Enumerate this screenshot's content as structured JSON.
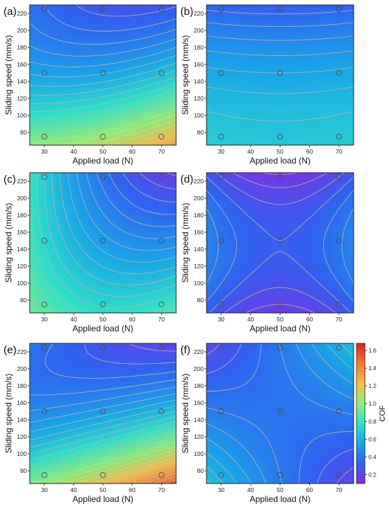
{
  "colorbar": {
    "label": "COF",
    "ticks": [
      "0.2",
      "0.4",
      "0.6",
      "0.8",
      "1.0",
      "1.2",
      "1.4",
      "1.6"
    ],
    "range": [
      0.1,
      1.68
    ],
    "colors": [
      "#8a2be2",
      "#2f63f0",
      "#1aa7e8",
      "#2fe0c8",
      "#8ef07a",
      "#f2c04a",
      "#f07a35",
      "#e0201e"
    ]
  },
  "chart_data": [
    {
      "type": "heatmap",
      "panel_label": "(a)",
      "xlabel": "Applied load (N)",
      "ylabel": "Sliding speed (mm/s)",
      "xlim": [
        25,
        75
      ],
      "ylim": [
        65,
        230
      ],
      "xticks": [
        30,
        40,
        50,
        60,
        70
      ],
      "yticks": [
        80,
        100,
        120,
        140,
        160,
        180,
        200,
        220
      ],
      "model": {
        "b0": 0.545,
        "b1": 0.05,
        "b2": -0.37,
        "b12": -0.08,
        "b11": 0.04,
        "b22": 0.11
      },
      "design_points": [
        [
          30,
          75
        ],
        [
          50,
          75
        ],
        [
          70,
          75
        ],
        [
          30,
          150
        ],
        [
          50,
          150
        ],
        [
          70,
          150
        ],
        [
          30,
          225
        ],
        [
          50,
          225
        ],
        [
          70,
          225
        ]
      ]
    },
    {
      "type": "heatmap",
      "panel_label": "(b)",
      "xlabel": "Applied load (N)",
      "ylabel": "Sliding speed (mm/s)",
      "xlim": [
        25,
        75
      ],
      "ylim": [
        65,
        230
      ],
      "xticks": [
        30,
        40,
        50,
        60,
        70
      ],
      "yticks": [
        80,
        100,
        120,
        140,
        160,
        180,
        200,
        220
      ],
      "model": {
        "b0": 0.55,
        "b1": 0.0,
        "b2": -0.17,
        "b12": 0.0,
        "b11": 0.01,
        "b22": -0.05
      },
      "design_points": [
        [
          30,
          75
        ],
        [
          50,
          75
        ],
        [
          70,
          75
        ],
        [
          30,
          150
        ],
        [
          50,
          150
        ],
        [
          70,
          150
        ],
        [
          30,
          225
        ],
        [
          50,
          225
        ],
        [
          70,
          225
        ]
      ]
    },
    {
      "type": "heatmap",
      "panel_label": "(c)",
      "xlabel": "Applied load (N)",
      "ylabel": "Sliding speed (mm/s)",
      "xlim": [
        25,
        75
      ],
      "ylim": [
        65,
        230
      ],
      "xticks": [
        30,
        40,
        50,
        60,
        70
      ],
      "yticks": [
        80,
        100,
        120,
        140,
        160,
        180,
        200,
        220
      ],
      "model": {
        "b0": 0.52,
        "b1": -0.14,
        "b2": -0.18,
        "b12": -0.1,
        "b11": 0.08,
        "b22": 0.04
      },
      "design_points": [
        [
          30,
          75
        ],
        [
          50,
          75
        ],
        [
          70,
          75
        ],
        [
          30,
          150
        ],
        [
          50,
          150
        ],
        [
          70,
          150
        ],
        [
          30,
          225
        ],
        [
          50,
          225
        ],
        [
          70,
          225
        ]
      ]
    },
    {
      "type": "heatmap",
      "panel_label": "(d)",
      "xlabel": "Applied load (N)",
      "ylabel": "Sliding speed (mm/s)",
      "xlim": [
        25,
        75
      ],
      "ylim": [
        65,
        230
      ],
      "xticks": [
        30,
        40,
        50,
        60,
        70
      ],
      "yticks": [
        80,
        100,
        120,
        140,
        160,
        180,
        200,
        220
      ],
      "model": {
        "b0": 0.3,
        "b1": 0.0,
        "b2": -0.02,
        "b12": 0.0,
        "b11": 0.09,
        "b22": -0.12
      },
      "design_points": [
        [
          30,
          75
        ],
        [
          50,
          75
        ],
        [
          70,
          75
        ],
        [
          30,
          150
        ],
        [
          50,
          150
        ],
        [
          70,
          150
        ],
        [
          30,
          225
        ],
        [
          50,
          225
        ],
        [
          70,
          225
        ]
      ]
    },
    {
      "type": "heatmap",
      "panel_label": "(e)",
      "xlabel": "Applied load (N)",
      "ylabel": "Sliding speed (mm/s)",
      "xlim": [
        25,
        75
      ],
      "ylim": [
        65,
        230
      ],
      "xticks": [
        30,
        40,
        50,
        60,
        70
      ],
      "yticks": [
        80,
        100,
        120,
        140,
        160,
        180,
        200,
        220
      ],
      "model": {
        "b0": 0.52,
        "b1": 0.08,
        "b2": -0.42,
        "b12": -0.14,
        "b11": 0.02,
        "b22": 0.18
      },
      "design_points": [
        [
          30,
          75
        ],
        [
          50,
          75
        ],
        [
          70,
          75
        ],
        [
          30,
          150
        ],
        [
          50,
          150
        ],
        [
          70,
          150
        ],
        [
          30,
          225
        ],
        [
          50,
          225
        ],
        [
          70,
          225
        ]
      ]
    },
    {
      "type": "heatmap",
      "panel_label": "(f)",
      "xlabel": "Applied load (N)",
      "ylabel": "Sliding speed (mm/s)",
      "xlim": [
        25,
        75
      ],
      "ylim": [
        65,
        230
      ],
      "xticks": [
        30,
        40,
        50,
        60,
        70
      ],
      "yticks": [
        80,
        100,
        120,
        140,
        160,
        180,
        200,
        220
      ],
      "model": {
        "b0": 0.38,
        "b1": 0.0,
        "b2": 0.0,
        "b12": 0.16,
        "b11": 0.02,
        "b22": 0.02
      },
      "design_points": [
        [
          30,
          75
        ],
        [
          50,
          75
        ],
        [
          70,
          75
        ],
        [
          30,
          150
        ],
        [
          50,
          150
        ],
        [
          70,
          150
        ],
        [
          30,
          225
        ],
        [
          50,
          225
        ],
        [
          70,
          225
        ]
      ]
    }
  ]
}
